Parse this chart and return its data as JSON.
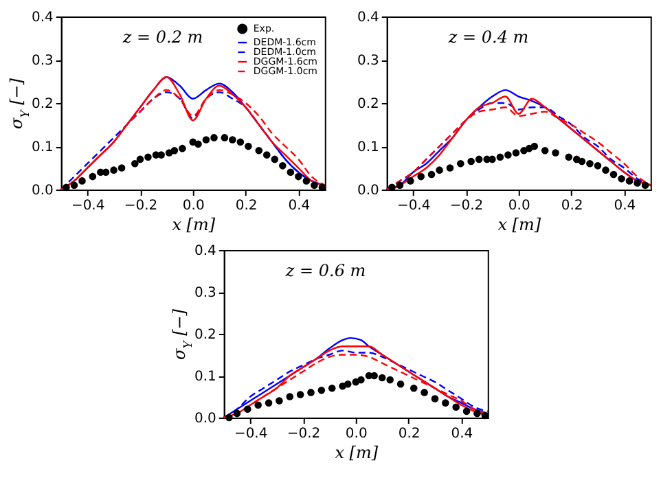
{
  "chart_data": [
    {
      "type": "line",
      "xlabel": "x [m]",
      "ylabel": "σ$_{Y}$ [−]",
      "annotations": [
        "z = 0.2 m"
      ],
      "legend": "top right",
      "grid": false,
      "xlim": [
        -0.5,
        0.5
      ],
      "ylim": [
        0,
        0.4
      ],
      "xticks": [
        {
          "value": -0.4,
          "label": "−0.4"
        },
        {
          "value": -0.2,
          "label": "−0.2"
        },
        {
          "value": 0,
          "label": "0.0"
        },
        {
          "value": 0.2,
          "label": "0.2"
        },
        {
          "value": 0.4,
          "label": "0.4"
        }
      ],
      "yticks": [
        {
          "value": 0,
          "label": "0.0"
        },
        {
          "value": 0.1,
          "label": "0.1"
        },
        {
          "value": 0.2,
          "label": "0.2"
        },
        {
          "value": 0.3,
          "label": "0.3"
        },
        {
          "value": 0.4,
          "label": "0.4"
        }
      ],
      "series": [
        {
          "name": "Exp.",
          "type": "scatter",
          "marker": "circle",
          "color": "#000000",
          "x": [
            -0.48,
            -0.45,
            -0.42,
            -0.38,
            -0.35,
            -0.33,
            -0.3,
            -0.27,
            -0.22,
            -0.2,
            -0.17,
            -0.14,
            -0.12,
            -0.09,
            -0.07,
            -0.04,
            0.0,
            0.02,
            0.05,
            0.08,
            0.12,
            0.15,
            0.18,
            0.21,
            0.25,
            0.28,
            0.31,
            0.34,
            0.37,
            0.4,
            0.43,
            0.46,
            0.49
          ],
          "values": [
            0.005,
            0.01,
            0.02,
            0.03,
            0.04,
            0.04,
            0.045,
            0.05,
            0.06,
            0.07,
            0.075,
            0.08,
            0.08,
            0.085,
            0.09,
            0.095,
            0.11,
            0.105,
            0.115,
            0.12,
            0.12,
            0.115,
            0.11,
            0.1,
            0.09,
            0.08,
            0.07,
            0.055,
            0.04,
            0.03,
            0.02,
            0.01,
            0.005
          ]
        },
        {
          "name": "DEDM-1.6cm",
          "type": "line",
          "line_style": "solid",
          "color": "#0000ff",
          "x": [
            -0.5,
            -0.45,
            -0.4,
            -0.35,
            -0.3,
            -0.25,
            -0.2,
            -0.15,
            -0.1,
            -0.05,
            0.0,
            0.05,
            0.1,
            0.15,
            0.2,
            0.25,
            0.3,
            0.35,
            0.4,
            0.45,
            0.5
          ],
          "values": [
            0.0,
            0.02,
            0.05,
            0.08,
            0.11,
            0.15,
            0.19,
            0.23,
            0.26,
            0.24,
            0.21,
            0.23,
            0.245,
            0.225,
            0.19,
            0.15,
            0.11,
            0.07,
            0.04,
            0.02,
            0.01
          ]
        },
        {
          "name": "DEDM-1.0cm",
          "type": "line",
          "line_style": "dashed",
          "color": "#0000ff",
          "x": [
            -0.5,
            -0.45,
            -0.4,
            -0.35,
            -0.3,
            -0.25,
            -0.2,
            -0.15,
            -0.1,
            -0.05,
            0.0,
            0.05,
            0.1,
            0.15,
            0.2,
            0.25,
            0.3,
            0.35,
            0.4,
            0.45,
            0.5
          ],
          "values": [
            0.0,
            0.03,
            0.06,
            0.09,
            0.12,
            0.15,
            0.18,
            0.21,
            0.225,
            0.21,
            0.165,
            0.21,
            0.225,
            0.21,
            0.19,
            0.15,
            0.11,
            0.07,
            0.04,
            0.02,
            0.01
          ]
        },
        {
          "name": "DGGM-1.6cm",
          "type": "line",
          "line_style": "solid",
          "color": "#ff0000",
          "x": [
            -0.5,
            -0.45,
            -0.4,
            -0.35,
            -0.3,
            -0.25,
            -0.2,
            -0.15,
            -0.1,
            -0.05,
            0.0,
            0.05,
            0.1,
            0.15,
            0.2,
            0.25,
            0.3,
            0.35,
            0.4,
            0.45,
            0.5
          ],
          "values": [
            0.0,
            0.02,
            0.05,
            0.08,
            0.11,
            0.15,
            0.19,
            0.23,
            0.26,
            0.22,
            0.16,
            0.21,
            0.24,
            0.22,
            0.19,
            0.15,
            0.11,
            0.08,
            0.05,
            0.02,
            0.01
          ]
        },
        {
          "name": "DGGM-1.0cm",
          "type": "line",
          "line_style": "dashed",
          "color": "#ff0000",
          "x": [
            -0.5,
            -0.45,
            -0.4,
            -0.35,
            -0.3,
            -0.25,
            -0.2,
            -0.15,
            -0.1,
            -0.05,
            0.0,
            0.05,
            0.1,
            0.15,
            0.2,
            0.25,
            0.3,
            0.35,
            0.4,
            0.45,
            0.5
          ],
          "values": [
            0.0,
            0.02,
            0.05,
            0.08,
            0.11,
            0.15,
            0.18,
            0.21,
            0.23,
            0.21,
            0.17,
            0.21,
            0.23,
            0.22,
            0.2,
            0.17,
            0.13,
            0.1,
            0.07,
            0.03,
            0.01
          ]
        }
      ]
    },
    {
      "type": "line",
      "xlabel": "x [m]",
      "annotations": [
        "z = 0.4 m"
      ],
      "grid": false,
      "xlim": [
        -0.5,
        0.5
      ],
      "ylim": [
        0,
        0.4
      ],
      "xticks": [
        {
          "value": -0.4,
          "label": "−0.4"
        },
        {
          "value": -0.2,
          "label": "−0.2"
        },
        {
          "value": 0,
          "label": "0.0"
        },
        {
          "value": 0.2,
          "label": "0.2"
        },
        {
          "value": 0.4,
          "label": "0.4"
        }
      ],
      "yticks": [
        {
          "value": 0,
          "label": "0.0"
        },
        {
          "value": 0.1,
          "label": "0.1"
        },
        {
          "value": 0.2,
          "label": "0.2"
        },
        {
          "value": 0.3,
          "label": "0.3"
        },
        {
          "value": 0.4,
          "label": "0.4"
        }
      ],
      "series": [
        {
          "type": "scatter",
          "marker": "circle",
          "color": "#000000",
          "x": [
            -0.48,
            -0.45,
            -0.41,
            -0.37,
            -0.33,
            -0.3,
            -0.26,
            -0.22,
            -0.18,
            -0.15,
            -0.12,
            -0.1,
            -0.07,
            -0.04,
            -0.01,
            0.02,
            0.04,
            0.06,
            0.1,
            0.14,
            0.19,
            0.22,
            0.24,
            0.27,
            0.3,
            0.33,
            0.36,
            0.39,
            0.42,
            0.45,
            0.48
          ],
          "values": [
            0.005,
            0.01,
            0.02,
            0.03,
            0.035,
            0.045,
            0.05,
            0.06,
            0.065,
            0.07,
            0.07,
            0.07,
            0.075,
            0.08,
            0.085,
            0.09,
            0.095,
            0.1,
            0.09,
            0.085,
            0.075,
            0.07,
            0.065,
            0.06,
            0.055,
            0.045,
            0.035,
            0.025,
            0.02,
            0.015,
            0.01
          ]
        },
        {
          "type": "line",
          "line_style": "solid",
          "color": "#0000ff",
          "x": [
            -0.5,
            -0.45,
            -0.4,
            -0.35,
            -0.3,
            -0.25,
            -0.2,
            -0.15,
            -0.1,
            -0.05,
            0.0,
            0.05,
            0.1,
            0.15,
            0.2,
            0.25,
            0.3,
            0.35,
            0.4,
            0.45,
            0.5
          ],
          "values": [
            0.0,
            0.01,
            0.04,
            0.06,
            0.09,
            0.12,
            0.16,
            0.19,
            0.215,
            0.23,
            0.215,
            0.205,
            0.19,
            0.165,
            0.14,
            0.115,
            0.09,
            0.065,
            0.04,
            0.02,
            0.01
          ]
        },
        {
          "type": "line",
          "line_style": "dashed",
          "color": "#0000ff",
          "x": [
            -0.5,
            -0.45,
            -0.4,
            -0.35,
            -0.3,
            -0.25,
            -0.2,
            -0.15,
            -0.1,
            -0.05,
            0.0,
            0.05,
            0.1,
            0.15,
            0.2,
            0.25,
            0.3,
            0.35,
            0.4,
            0.45,
            0.5
          ],
          "values": [
            0.0,
            0.02,
            0.04,
            0.07,
            0.1,
            0.13,
            0.16,
            0.185,
            0.2,
            0.2,
            0.185,
            0.19,
            0.19,
            0.17,
            0.15,
            0.12,
            0.1,
            0.07,
            0.05,
            0.025,
            0.01
          ]
        },
        {
          "type": "line",
          "line_style": "solid",
          "color": "#ff0000",
          "x": [
            -0.5,
            -0.45,
            -0.4,
            -0.35,
            -0.3,
            -0.25,
            -0.2,
            -0.15,
            -0.1,
            -0.05,
            0.0,
            0.05,
            0.1,
            0.15,
            0.2,
            0.25,
            0.3,
            0.35,
            0.4,
            0.45,
            0.5
          ],
          "values": [
            0.0,
            0.01,
            0.03,
            0.05,
            0.08,
            0.12,
            0.16,
            0.19,
            0.2,
            0.215,
            0.175,
            0.21,
            0.19,
            0.165,
            0.14,
            0.115,
            0.09,
            0.065,
            0.04,
            0.02,
            0.01
          ]
        },
        {
          "type": "line",
          "line_style": "dashed",
          "color": "#ff0000",
          "x": [
            -0.5,
            -0.45,
            -0.4,
            -0.35,
            -0.3,
            -0.25,
            -0.2,
            -0.15,
            -0.1,
            -0.05,
            0.0,
            0.05,
            0.1,
            0.15,
            0.2,
            0.25,
            0.3,
            0.35,
            0.4,
            0.45,
            0.5
          ],
          "values": [
            0.0,
            0.02,
            0.04,
            0.07,
            0.1,
            0.13,
            0.16,
            0.18,
            0.185,
            0.19,
            0.17,
            0.175,
            0.18,
            0.165,
            0.15,
            0.13,
            0.11,
            0.085,
            0.06,
            0.03,
            0.01
          ]
        }
      ]
    },
    {
      "type": "line",
      "xlabel": "x [m]",
      "ylabel": "σ$_{Y}$ [−]",
      "annotations": [
        "z = 0.6 m"
      ],
      "grid": false,
      "xlim": [
        -0.5,
        0.5
      ],
      "ylim": [
        0,
        0.4
      ],
      "xticks": [
        {
          "value": -0.4,
          "label": "−0.4"
        },
        {
          "value": -0.2,
          "label": "−0.2"
        },
        {
          "value": 0,
          "label": "0.0"
        },
        {
          "value": 0.2,
          "label": "0.2"
        },
        {
          "value": 0.4,
          "label": "0.4"
        }
      ],
      "yticks": [
        {
          "value": 0,
          "label": "0.0"
        },
        {
          "value": 0.1,
          "label": "0.1"
        },
        {
          "value": 0.2,
          "label": "0.2"
        },
        {
          "value": 0.3,
          "label": "0.3"
        },
        {
          "value": 0.4,
          "label": "0.4"
        }
      ],
      "series": [
        {
          "type": "scatter",
          "marker": "circle",
          "color": "#000000",
          "x": [
            -0.48,
            -0.45,
            -0.41,
            -0.37,
            -0.33,
            -0.29,
            -0.25,
            -0.21,
            -0.17,
            -0.13,
            -0.09,
            -0.05,
            -0.03,
            0.0,
            0.02,
            0.05,
            0.07,
            0.1,
            0.13,
            0.17,
            0.22,
            0.26,
            0.3,
            0.34,
            0.38,
            0.42,
            0.46,
            0.49
          ],
          "values": [
            0.0,
            0.01,
            0.02,
            0.03,
            0.035,
            0.04,
            0.05,
            0.055,
            0.06,
            0.065,
            0.07,
            0.075,
            0.08,
            0.085,
            0.09,
            0.1,
            0.1,
            0.095,
            0.09,
            0.08,
            0.07,
            0.06,
            0.045,
            0.035,
            0.025,
            0.015,
            0.01,
            0.005
          ]
        },
        {
          "type": "line",
          "line_style": "solid",
          "color": "#0000ff",
          "x": [
            -0.5,
            -0.45,
            -0.4,
            -0.35,
            -0.3,
            -0.25,
            -0.2,
            -0.15,
            -0.1,
            -0.05,
            -0.02,
            0.02,
            0.05,
            0.1,
            0.15,
            0.2,
            0.25,
            0.3,
            0.35,
            0.4,
            0.45,
            0.5
          ],
          "values": [
            0.0,
            0.02,
            0.04,
            0.06,
            0.08,
            0.1,
            0.12,
            0.14,
            0.165,
            0.185,
            0.19,
            0.185,
            0.17,
            0.15,
            0.13,
            0.11,
            0.09,
            0.07,
            0.05,
            0.035,
            0.02,
            0.01
          ]
        },
        {
          "type": "line",
          "line_style": "dashed",
          "color": "#0000ff",
          "x": [
            -0.5,
            -0.45,
            -0.4,
            -0.35,
            -0.3,
            -0.25,
            -0.2,
            -0.15,
            -0.1,
            -0.05,
            0.0,
            0.05,
            0.1,
            0.15,
            0.2,
            0.25,
            0.3,
            0.35,
            0.4,
            0.45,
            0.5
          ],
          "values": [
            0.0,
            0.02,
            0.05,
            0.07,
            0.09,
            0.11,
            0.125,
            0.14,
            0.15,
            0.16,
            0.155,
            0.155,
            0.145,
            0.13,
            0.115,
            0.1,
            0.085,
            0.065,
            0.045,
            0.025,
            0.015
          ]
        },
        {
          "type": "line",
          "line_style": "solid",
          "color": "#ff0000",
          "x": [
            -0.5,
            -0.45,
            -0.4,
            -0.35,
            -0.3,
            -0.25,
            -0.2,
            -0.15,
            -0.1,
            -0.05,
            0.0,
            0.05,
            0.1,
            0.15,
            0.2,
            0.25,
            0.3,
            0.35,
            0.4,
            0.45,
            0.5
          ],
          "values": [
            0.0,
            0.01,
            0.03,
            0.05,
            0.07,
            0.1,
            0.12,
            0.14,
            0.16,
            0.17,
            0.17,
            0.17,
            0.15,
            0.13,
            0.11,
            0.09,
            0.07,
            0.05,
            0.03,
            0.015,
            0.005
          ]
        },
        {
          "type": "line",
          "line_style": "dashed",
          "color": "#ff0000",
          "x": [
            -0.5,
            -0.45,
            -0.4,
            -0.35,
            -0.3,
            -0.25,
            -0.2,
            -0.15,
            -0.1,
            -0.05,
            0.0,
            0.05,
            0.1,
            0.15,
            0.2,
            0.25,
            0.3,
            0.35,
            0.4,
            0.45,
            0.5
          ],
          "values": [
            0.0,
            0.01,
            0.03,
            0.05,
            0.07,
            0.09,
            0.11,
            0.13,
            0.145,
            0.15,
            0.15,
            0.145,
            0.13,
            0.115,
            0.1,
            0.085,
            0.07,
            0.055,
            0.04,
            0.02,
            0.01
          ]
        }
      ]
    }
  ]
}
